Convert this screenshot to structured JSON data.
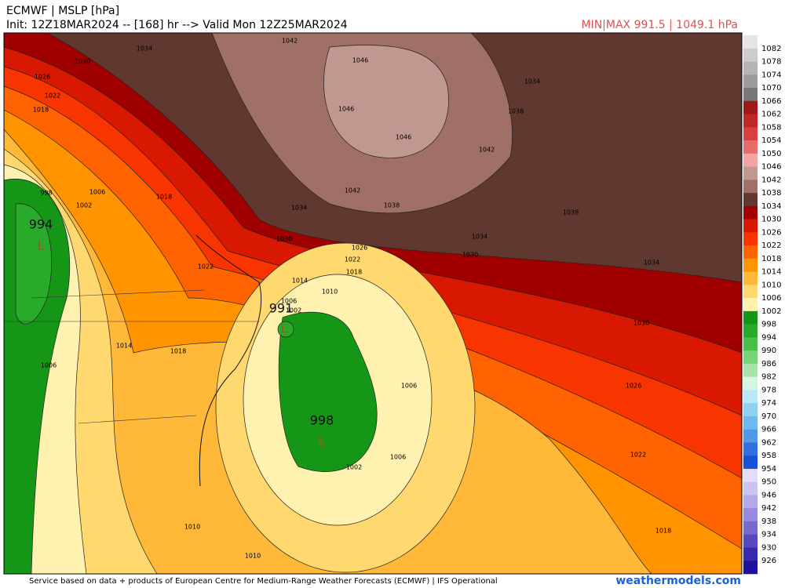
{
  "header": {
    "title": "ECMWF | MSLP [hPa]",
    "subtitle": "Init: 12Z18MAR2024 -- [168] hr --> Valid Mon 12Z25MAR2024",
    "minmax": "MIN|MAX 991.5 | 1049.1 hPa"
  },
  "colorbar": {
    "labels": [
      "1082",
      "1078",
      "1074",
      "1070",
      "1066",
      "1062",
      "1058",
      "1054",
      "1050",
      "1046",
      "1042",
      "1038",
      "1034",
      "1030",
      "1026",
      "1022",
      "1018",
      "1014",
      "1010",
      "1006",
      "1002",
      "998",
      "994",
      "990",
      "986",
      "982",
      "978",
      "974",
      "970",
      "966",
      "962",
      "958",
      "954",
      "950",
      "946",
      "942",
      "938",
      "934",
      "930",
      "926"
    ],
    "colors": [
      "#e4e4e4",
      "#cccccc",
      "#b4b4b4",
      "#9c9c9c",
      "#787878",
      "#a01818",
      "#c02828",
      "#d84040",
      "#e86a6a",
      "#f2a4a4",
      "#c09890",
      "#a07068",
      "#603830",
      "#a00000",
      "#d81800",
      "#f83400",
      "#ff6200",
      "#ff9400",
      "#ffb838",
      "#ffd870",
      "#fff2b0",
      "#169616",
      "#2aaa2a",
      "#48c048",
      "#78d478",
      "#a8e4a8",
      "#d4f4e4",
      "#b8e8f8",
      "#90d0f0",
      "#70b8f0",
      "#5098e8",
      "#3070e0",
      "#1850d8",
      "#e4dcf8",
      "#ccc4f0",
      "#b4a8e8",
      "#9888e0",
      "#7868d0",
      "#5848c0",
      "#3828b0",
      "#2010a0"
    ]
  },
  "map": {
    "contour_labels": [
      "1034",
      "1030",
      "1026",
      "1022",
      "1018",
      "1042",
      "1046",
      "1046",
      "1046",
      "1042",
      "1038",
      "1034",
      "1042",
      "1038",
      "1034",
      "1038",
      "1034",
      "1030",
      "1034",
      "1030",
      "1026",
      "1022",
      "1018",
      "1014",
      "1010",
      "1006",
      "1002",
      "1030",
      "1026",
      "1022",
      "1018",
      "1006",
      "1006",
      "1002",
      "1022",
      "1018",
      "1014",
      "1018",
      "1006",
      "998",
      "1002",
      "1006",
      "1010",
      "1010"
    ],
    "centers": [
      {
        "value": "994",
        "symbol": "L"
      },
      {
        "value": "991",
        "symbol": "L"
      },
      {
        "value": "998",
        "symbol": "L"
      }
    ]
  },
  "footer": {
    "credit": "Service based on data + products of European Centre for Medium-Range Weather Forecasts (ECMWF) | IFS Operational",
    "brand": "weathermodels.com"
  }
}
